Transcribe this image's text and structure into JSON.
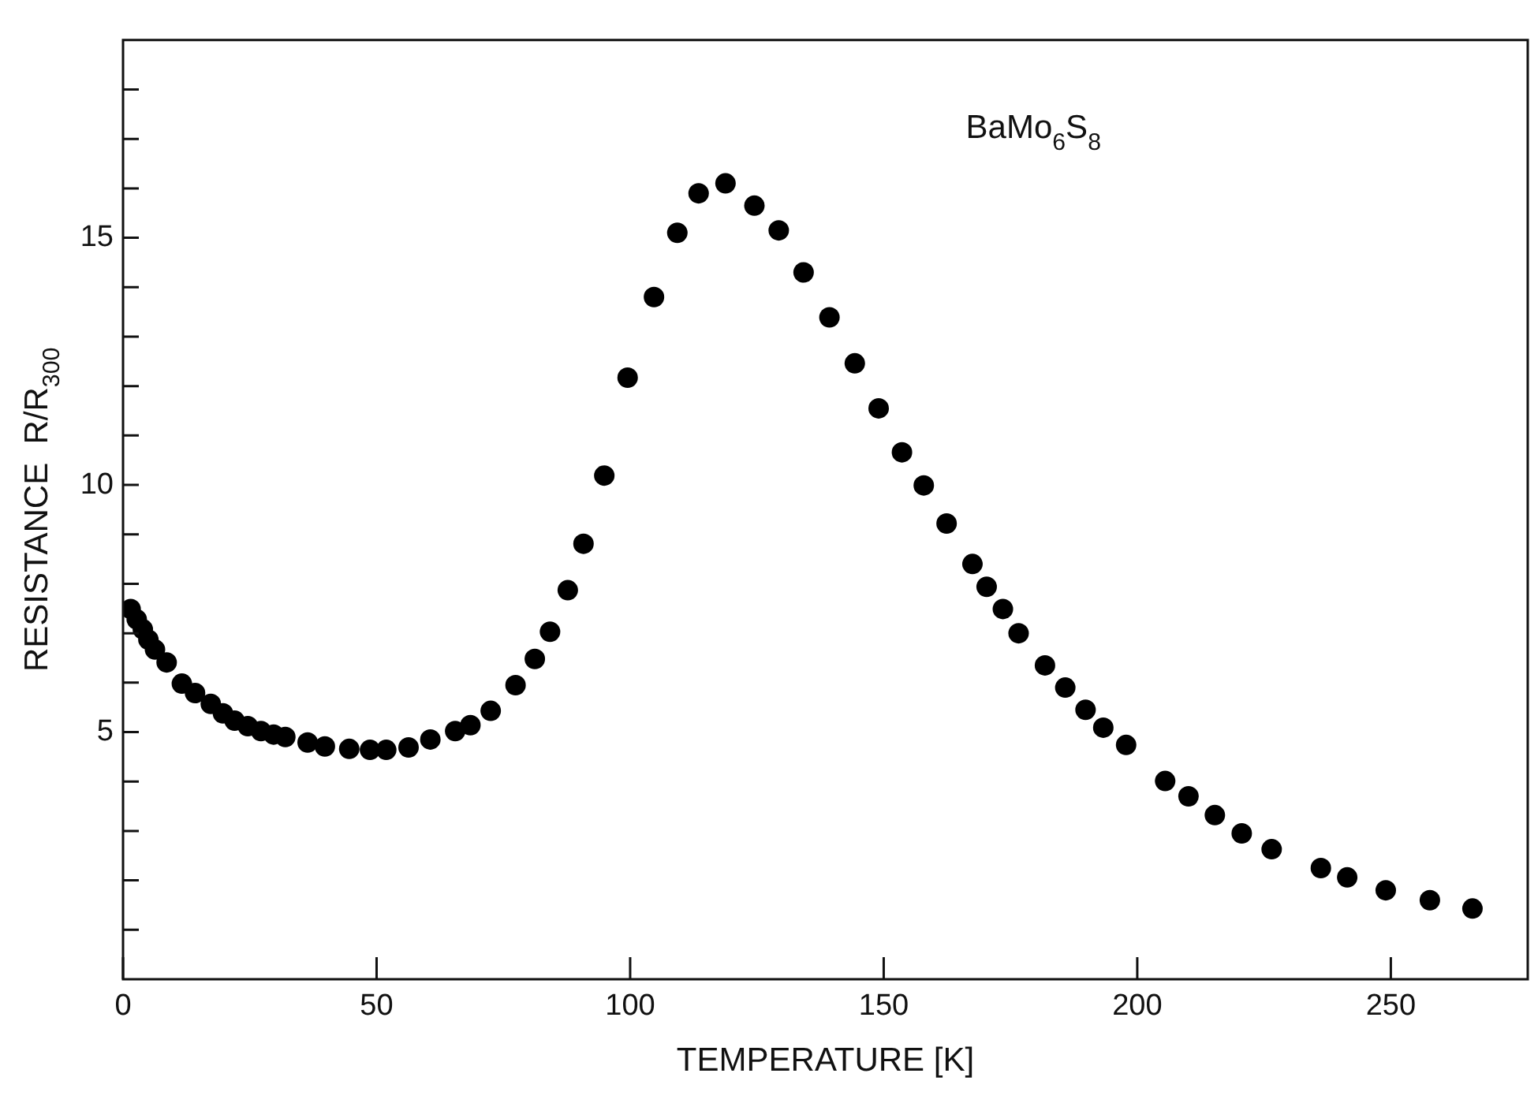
{
  "chart_data": {
    "type": "scatter",
    "xlabel": "TEMPERATURE [K]",
    "ylabel": "RESISTANCE  R/R$_{300}$",
    "annotations": [
      "BaMo$_{6}$S$_{8}$"
    ],
    "x": [
      1.5,
      2.7,
      3.9,
      5.0,
      6.3,
      8.6,
      11.6,
      14.2,
      17.3,
      19.7,
      22.0,
      24.6,
      27.2,
      29.7,
      32.0,
      36.4,
      39.8,
      44.6,
      48.7,
      51.9,
      56.3,
      60.6,
      65.5,
      68.5,
      72.5,
      77.4,
      81.2,
      84.2,
      87.7,
      90.8,
      94.9,
      99.5,
      104.7,
      109.3,
      113.5,
      118.8,
      124.5,
      129.3,
      134.2,
      139.3,
      144.3,
      149.0,
      153.6,
      157.9,
      162.4,
      167.5,
      170.3,
      173.5,
      176.6,
      181.8,
      185.8,
      189.8,
      193.3,
      197.8,
      205.5,
      210.1,
      215.3,
      220.6,
      226.5,
      236.2,
      241.4,
      249.0,
      257.7,
      266.1
    ],
    "series": [
      {
        "color": "#000000",
        "values": [
          7.49,
          7.28,
          7.08,
          6.87,
          6.67,
          6.41,
          5.98,
          5.79,
          5.57,
          5.38,
          5.23,
          5.12,
          5.02,
          4.95,
          4.9,
          4.79,
          4.71,
          4.66,
          4.64,
          4.64,
          4.69,
          4.85,
          5.02,
          5.14,
          5.43,
          5.95,
          6.48,
          7.03,
          7.87,
          8.81,
          10.19,
          12.17,
          13.8,
          15.1,
          15.9,
          16.1,
          15.65,
          15.15,
          14.3,
          13.39,
          12.46,
          11.55,
          10.66,
          9.99,
          9.22,
          8.4,
          7.94,
          7.49,
          7.0,
          6.35,
          5.9,
          5.45,
          5.09,
          4.74,
          4.01,
          3.7,
          3.32,
          2.95,
          2.63,
          2.25,
          2.06,
          1.8,
          1.6,
          1.43
        ]
      }
    ],
    "xlim": [
      0,
      277
    ],
    "xticks": [
      0,
      50,
      100,
      150,
      200,
      250
    ],
    "ylim": [
      0,
      19
    ],
    "yticks": [
      {
        "value": 1,
        "label": null
      },
      {
        "value": 2,
        "label": null
      },
      {
        "value": 3,
        "label": null
      },
      {
        "value": 4,
        "label": null
      },
      5,
      {
        "value": 6,
        "label": null
      },
      {
        "value": 7,
        "label": null
      },
      {
        "value": 8,
        "label": null
      },
      {
        "value": 9,
        "label": null
      },
      10,
      {
        "value": 11,
        "label": null
      },
      {
        "value": 12,
        "label": null
      },
      {
        "value": 13,
        "label": null
      },
      {
        "value": 14,
        "label": null
      },
      15,
      {
        "value": 16,
        "label": null
      },
      {
        "value": 17,
        "label": null
      },
      {
        "value": 18,
        "label": null
      }
    ],
    "marker": "circle",
    "grid": false,
    "legend": false
  }
}
